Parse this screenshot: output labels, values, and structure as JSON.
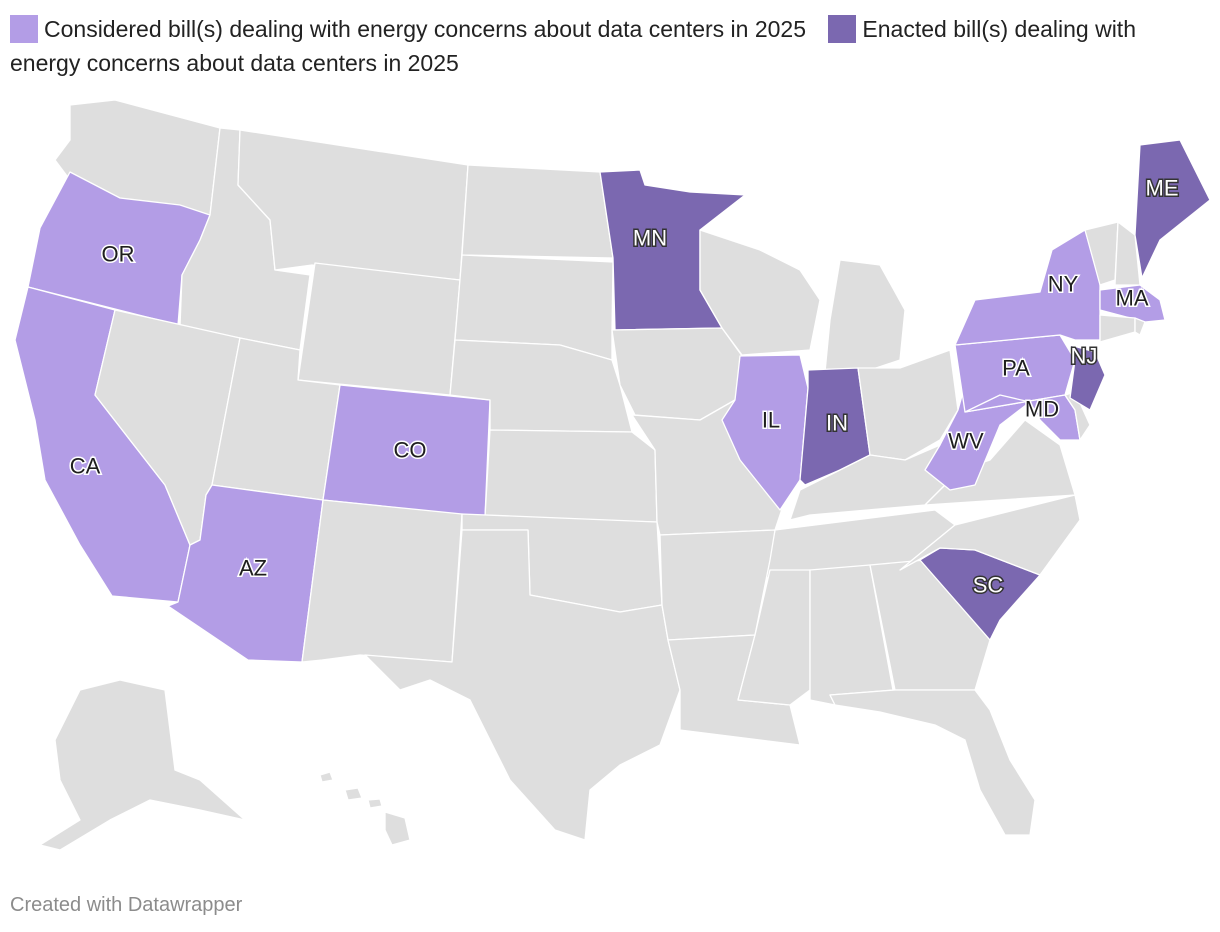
{
  "legend": {
    "items": [
      {
        "label": "Considered bill(s) dealing with energy concerns about data centers in 2025",
        "color": "#b39de6"
      },
      {
        "label": "Enacted bill(s) dealing with energy concerns about data centers in 2025",
        "color": "#7b68b0"
      }
    ]
  },
  "colors": {
    "default": "#dedede",
    "considered": "#b39de6",
    "enacted": "#7b68b0",
    "border": "#ffffff"
  },
  "states": {
    "OR": {
      "label": "OR",
      "status": "considered"
    },
    "CA": {
      "label": "CA",
      "status": "considered"
    },
    "AZ": {
      "label": "AZ",
      "status": "considered"
    },
    "CO": {
      "label": "CO",
      "status": "considered"
    },
    "IL": {
      "label": "IL",
      "status": "considered"
    },
    "NY": {
      "label": "NY",
      "status": "considered"
    },
    "PA": {
      "label": "PA",
      "status": "considered"
    },
    "MD": {
      "label": "MD",
      "status": "considered"
    },
    "WV": {
      "label": "WV",
      "status": "considered"
    },
    "MA": {
      "label": "MA",
      "status": "considered"
    },
    "MN": {
      "label": "MN",
      "status": "enacted"
    },
    "IN": {
      "label": "IN",
      "status": "enacted"
    },
    "ME": {
      "label": "ME",
      "status": "enacted"
    },
    "NJ": {
      "label": "NJ",
      "status": "enacted"
    },
    "SC": {
      "label": "SC",
      "status": "enacted"
    }
  },
  "footer": "Created with Datawrapper"
}
